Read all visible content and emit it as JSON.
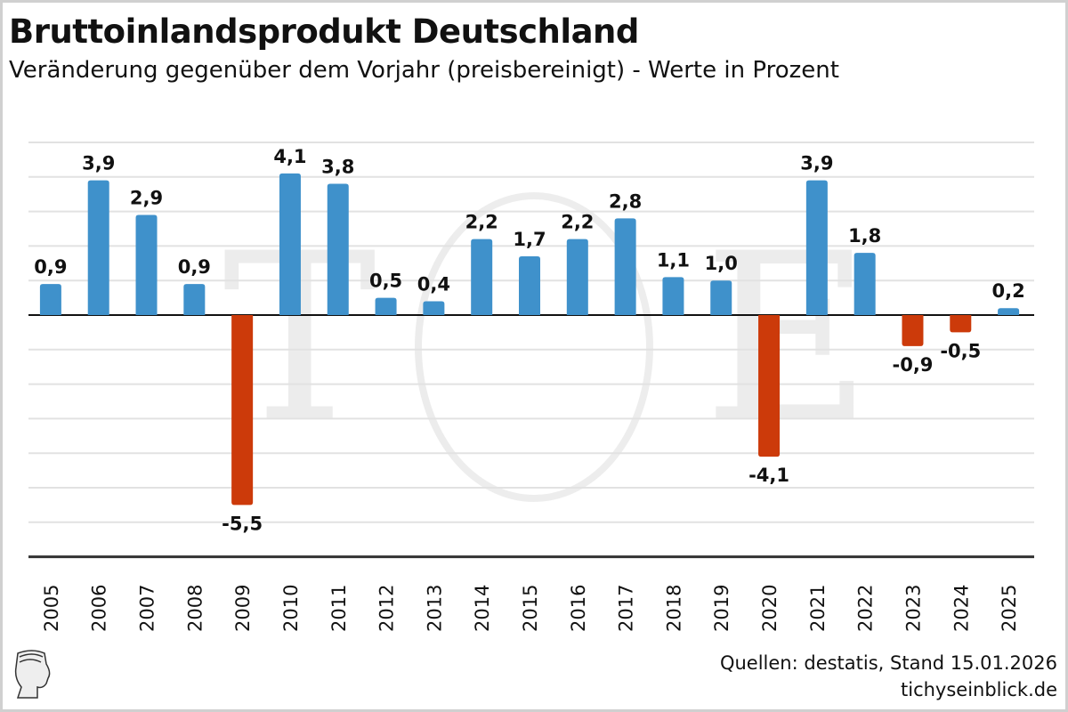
{
  "title": "Bruttoinlandsprodukt Deutschland",
  "subtitle": "Veränderung gegenüber dem Vorjahr (preisbereinigt) - Werte in Prozent",
  "source": "Quellen: destatis, Stand 15.01.2026",
  "website": "tichyseinblick.de",
  "logo_text": "TE",
  "colors": {
    "positive": "#3f91cb",
    "negative": "#cc3a0a",
    "grid": "#e2e2e2",
    "axis": "#111111"
  },
  "chart_data": {
    "type": "bar",
    "title": "Bruttoinlandsprodukt Deutschland",
    "subtitle": "Veränderung gegenüber dem Vorjahr (preisbereinigt) - Werte in Prozent",
    "xlabel": "",
    "ylabel": "",
    "ylim": [
      -7,
      5
    ],
    "grid": true,
    "categories": [
      "2005",
      "2006",
      "2007",
      "2008",
      "2009",
      "2010",
      "2011",
      "2012",
      "2013",
      "2014",
      "2015",
      "2016",
      "2017",
      "2018",
      "2019",
      "2020",
      "2021",
      "2022",
      "2023",
      "2024",
      "2025"
    ],
    "values": [
      0.9,
      3.9,
      2.9,
      0.9,
      -5.5,
      4.1,
      3.8,
      0.5,
      0.4,
      2.2,
      1.7,
      2.2,
      2.8,
      1.1,
      1.0,
      -4.1,
      3.9,
      1.8,
      -0.9,
      -0.5,
      0.2
    ],
    "labels": [
      "0,9",
      "3,9",
      "2,9",
      "0,9",
      "-5,5",
      "4,1",
      "3,8",
      "0,5",
      "0,4",
      "2,2",
      "1,7",
      "2,2",
      "2,8",
      "1,1",
      "1,0",
      "-4,1",
      "3,9",
      "1,8",
      "-0,9",
      "-0,5",
      "0,2"
    ]
  }
}
